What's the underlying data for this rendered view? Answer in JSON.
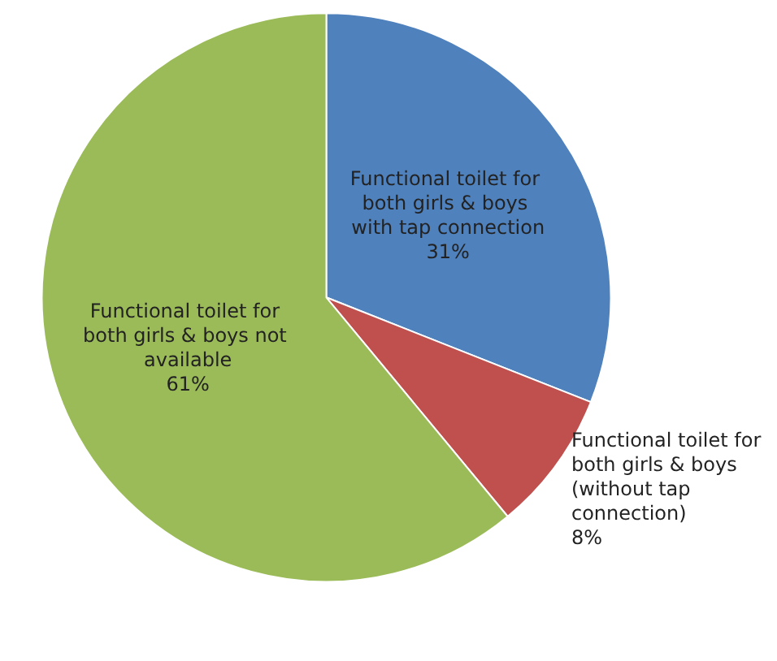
{
  "chart_data": {
    "type": "pie",
    "categories": [
      "Functional toilet for both girls & boys with tap connection",
      "Functional toilet for both girls & boys (without tap connection)",
      "Functional toilet for both girls & boys not available"
    ],
    "values": [
      31,
      8,
      61
    ],
    "colors": [
      "#4f81bd",
      "#c0504d",
      "#9bbb59"
    ],
    "value_labels": [
      "31%",
      "8%",
      "61%"
    ]
  }
}
